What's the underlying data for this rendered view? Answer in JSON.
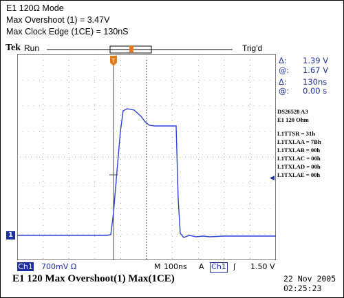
{
  "header": {
    "line1": "E1 120Ω Mode",
    "line2": "Max Overshoot (1) = 3.47V",
    "line3": "Max Clock Edge (1CE) = 130nS"
  },
  "topbar": {
    "brand": "Tek",
    "run_label": "Run",
    "trig_label": "Trig'd"
  },
  "cursor_readout": {
    "delta_v_label": "Δ:",
    "delta_v": "1.39 V",
    "at_v_label": "@:",
    "at_v": "1.67 V",
    "delta_t_label": "Δ:",
    "delta_t": "130ns",
    "at_t_label": "@:",
    "at_t": "0.00 s"
  },
  "registers": {
    "device": "DS26528  A3",
    "mode": "E1 120 Ohm",
    "lines": [
      "L1TTSR = 31h",
      "L1TXLAA = 7Bh",
      "L1TXLAB = 00h",
      "L1TXLAC = 00h",
      "L1TXLAD = 00h",
      "L1TXLAE = 00h"
    ]
  },
  "status_bar": {
    "channel": "Ch1",
    "volts_div": "700mV Ω",
    "timebase_label": "M",
    "timebase": "100ns",
    "trigger_mode": "A",
    "trigger_channel": "Ch1",
    "trigger_slope": "ʃ",
    "trigger_level": "1.50 V"
  },
  "channel_marker": "1",
  "caption": "E1 120 Max Overshoot(1)  Max(1CE)",
  "date": "22 Nov 2005",
  "time": "02:25:23",
  "colors": {
    "trace": "#2a3fd6",
    "readout": "#1b2fa0",
    "grid": "#555555",
    "trigger_marker": "#e07a1a"
  }
}
